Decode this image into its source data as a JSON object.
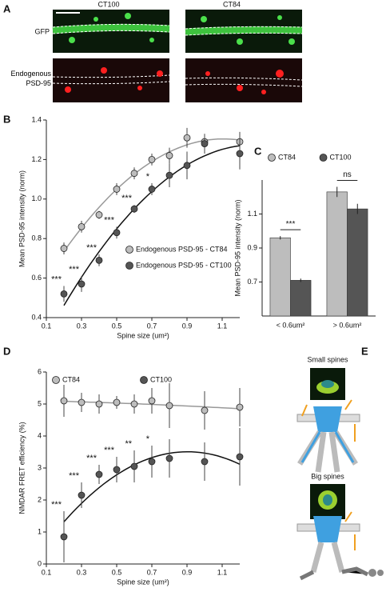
{
  "panels": [
    "A",
    "B",
    "C",
    "D",
    "E"
  ],
  "panel_a": {
    "columns": [
      "CT100",
      "CT84"
    ],
    "rows": [
      "GFP",
      "Endogenous PSD-95"
    ]
  },
  "panel_e": {
    "labels": [
      "Small spines",
      "Big spines"
    ]
  },
  "chart_data": [
    {
      "type": "scatter",
      "xlabel": "Spine size (um²)",
      "ylabel": "Mean PSD-95 intensity (norm)",
      "x": [
        0.2,
        0.3,
        0.4,
        0.5,
        0.6,
        0.7,
        0.8,
        0.9,
        1.0,
        1.2
      ],
      "xlim": [
        0.1,
        1.2
      ],
      "xticks": [
        0.1,
        0.3,
        0.5,
        0.7,
        0.9,
        1.1
      ],
      "ylim": [
        0.4,
        1.4
      ],
      "yticks": [
        0.4,
        0.6,
        0.8,
        {
          "value": 1.0,
          "label": "1.0"
        },
        1.2,
        1.4
      ],
      "legend": "lower right",
      "series": [
        {
          "name": "Endogenous PSD-95 - CT84",
          "color": "#bdbdbd",
          "values": [
            0.75,
            0.86,
            0.92,
            1.05,
            1.13,
            1.2,
            1.22,
            1.31,
            1.29,
            1.29
          ],
          "errors": [
            0.03,
            0.03,
            0.02,
            0.03,
            0.03,
            0.03,
            0.04,
            0.05,
            0.03,
            0.05
          ]
        },
        {
          "name": "Endogenous PSD-95 - CT100",
          "color": "#555555",
          "values": [
            0.52,
            0.57,
            0.69,
            0.83,
            0.95,
            1.05,
            1.12,
            1.17,
            1.28,
            1.23
          ],
          "errors": [
            0.04,
            0.04,
            0.03,
            0.03,
            0.02,
            0.03,
            0.06,
            0.07,
            0.05,
            0.08
          ]
        }
      ],
      "annotations": [
        {
          "x": 0.2,
          "text": "***"
        },
        {
          "x": 0.3,
          "text": "***"
        },
        {
          "x": 0.4,
          "text": "***"
        },
        {
          "x": 0.5,
          "text": "***"
        },
        {
          "x": 0.6,
          "text": "***"
        },
        {
          "x": 0.7,
          "text": "*"
        }
      ]
    },
    {
      "type": "bar",
      "ylabel": "Mean PSD-95 intensity (norm)",
      "categories": [
        "< 0.6um²",
        "> 0.6um²"
      ],
      "ylim": [
        0.5,
        1.3
      ],
      "yticks": [
        0.7,
        0.9,
        1.1
      ],
      "legend": "top",
      "series": [
        {
          "name": "CT84",
          "color": "#bdbdbd",
          "values": [
            0.96,
            1.23
          ],
          "errors": [
            0.01,
            0.03
          ]
        },
        {
          "name": "CT100",
          "color": "#555555",
          "values": [
            0.71,
            1.13
          ],
          "errors": [
            0.01,
            0.03
          ]
        }
      ],
      "annotations": [
        "***",
        "ns"
      ]
    },
    {
      "type": "scatter",
      "xlabel": "Spine size (um²)",
      "ylabel": "NMDAR FRET efficiency (%)",
      "x": [
        0.2,
        0.3,
        0.4,
        0.5,
        0.6,
        0.7,
        0.8,
        1.0,
        1.2
      ],
      "xlim": [
        0.1,
        1.2
      ],
      "xticks": [
        0.1,
        0.3,
        0.5,
        0.7,
        0.9,
        1.1
      ],
      "ylim": [
        0,
        6
      ],
      "yticks": [
        0,
        1,
        2,
        3,
        4,
        5,
        6
      ],
      "legend": "top",
      "series": [
        {
          "name": "CT84",
          "color": "#bdbdbd",
          "values": [
            5.1,
            5.05,
            5.0,
            5.05,
            5.0,
            5.1,
            4.95,
            4.8,
            4.9
          ],
          "errors": [
            0.5,
            0.3,
            0.3,
            0.2,
            0.3,
            0.4,
            0.7,
            0.6,
            0.6
          ]
        },
        {
          "name": "CT100",
          "color": "#555555",
          "values": [
            0.85,
            2.15,
            2.8,
            2.95,
            3.05,
            3.2,
            3.3,
            3.2,
            3.35
          ],
          "errors": [
            0.8,
            0.4,
            0.3,
            0.4,
            0.5,
            0.5,
            0.6,
            0.6,
            0.9
          ]
        }
      ],
      "annotations": [
        {
          "x": 0.2,
          "text": "***"
        },
        {
          "x": 0.3,
          "text": "***"
        },
        {
          "x": 0.4,
          "text": "***"
        },
        {
          "x": 0.5,
          "text": "***"
        },
        {
          "x": 0.6,
          "text": "**"
        },
        {
          "x": 0.7,
          "text": "*"
        }
      ]
    }
  ]
}
